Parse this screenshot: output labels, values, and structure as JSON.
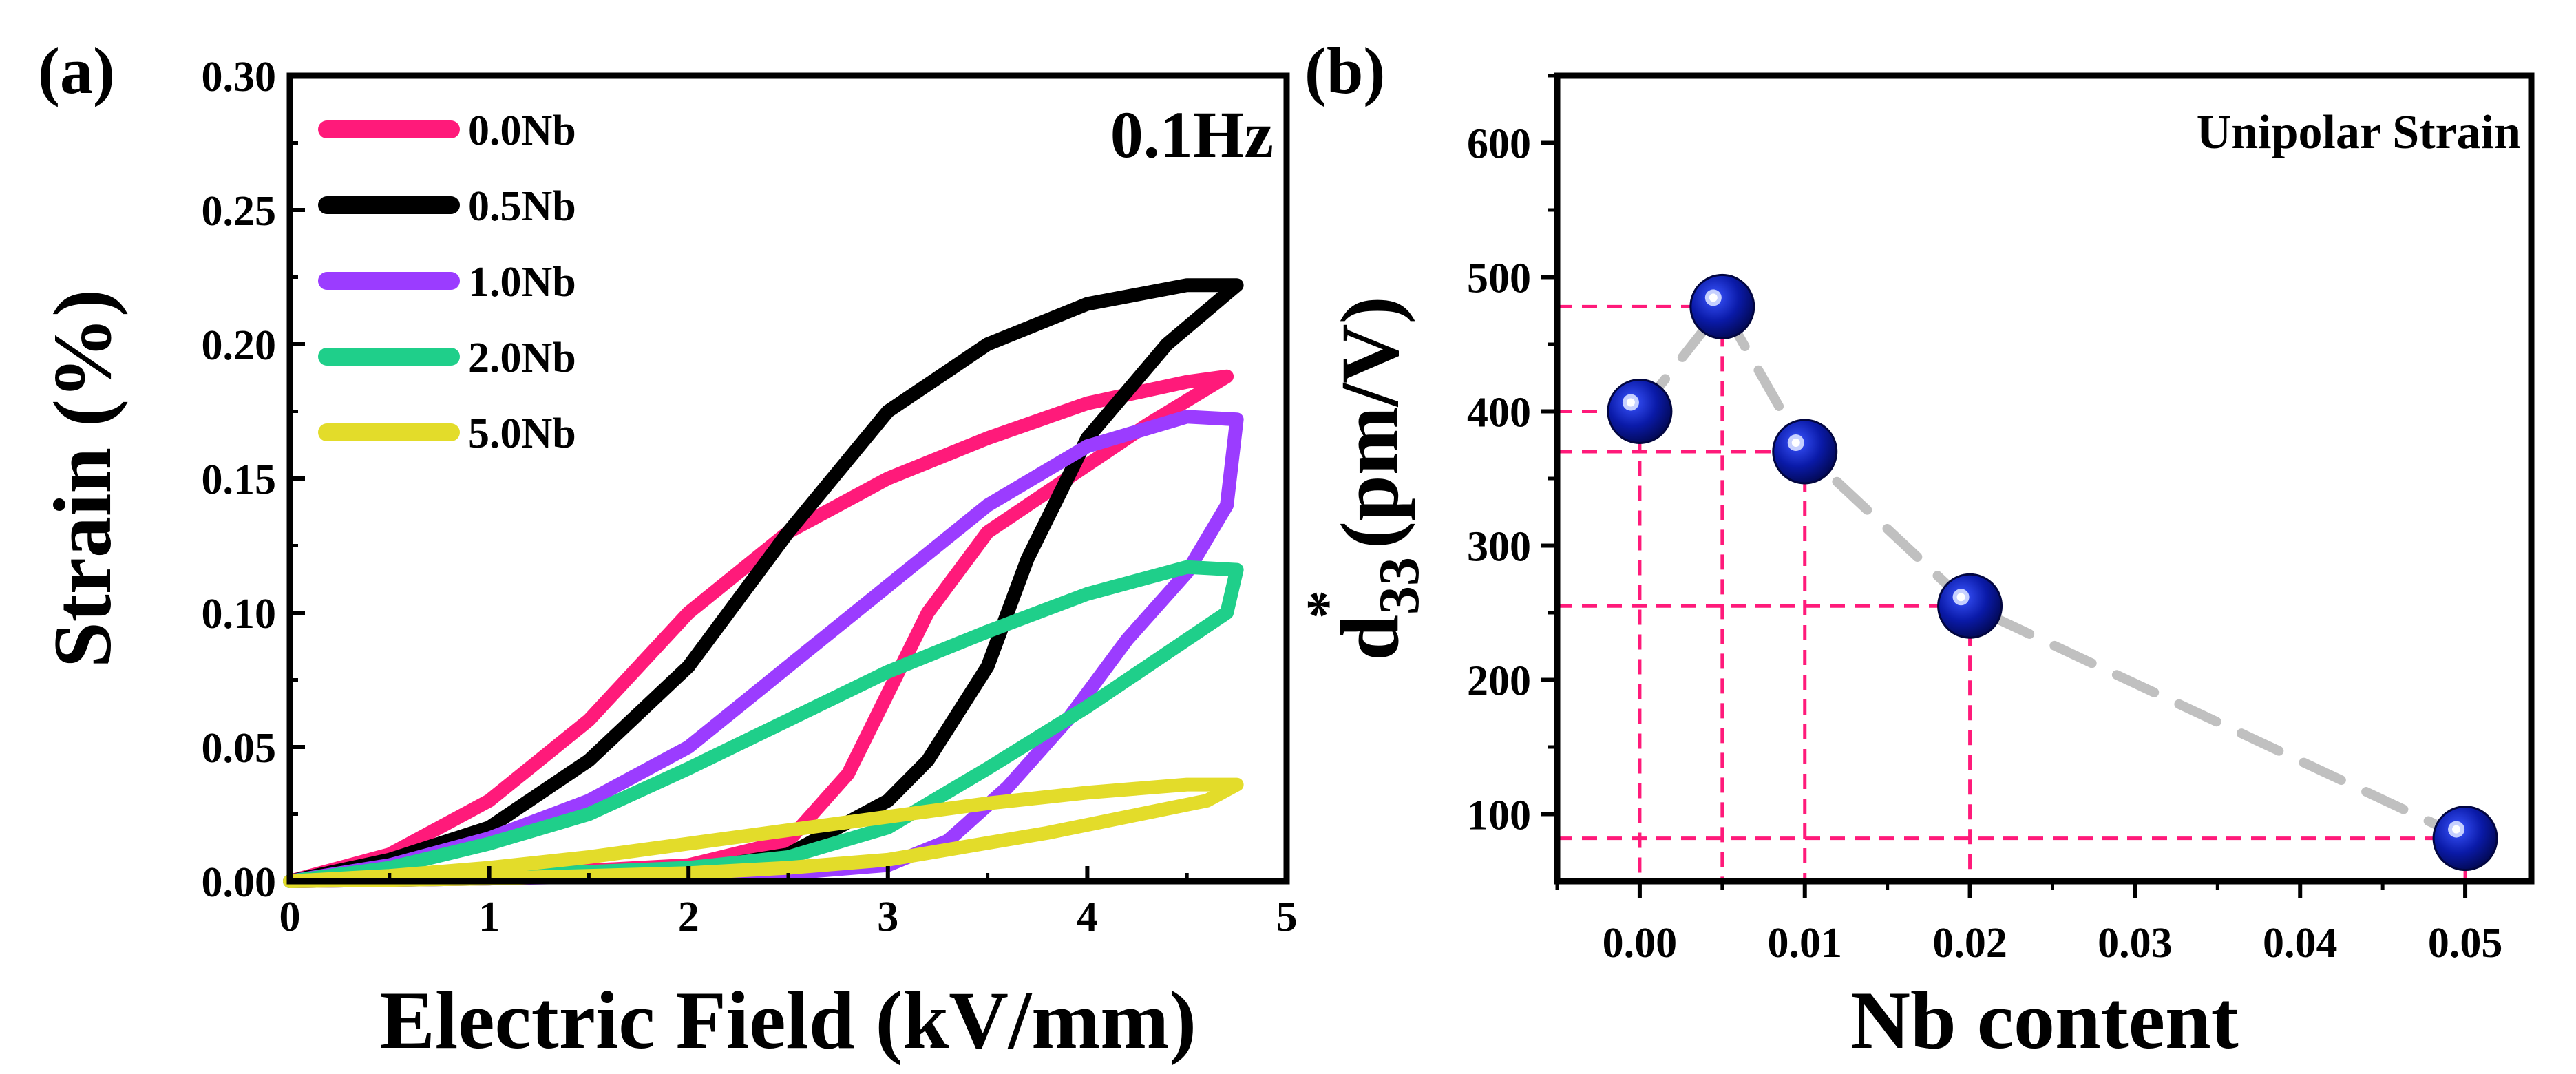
{
  "chart_data": [
    {
      "panel": "(a)",
      "type": "line",
      "annotation": "0.1Hz",
      "xlabel": "Electric Field (kV/mm)",
      "ylabel": "Strain (%)",
      "xlim": [
        0,
        5
      ],
      "ylim": [
        0,
        0.3
      ],
      "xticks": [
        "0",
        "1",
        "2",
        "3",
        "4",
        "5"
      ],
      "yticks": [
        "0.00",
        "0.05",
        "0.10",
        "0.15",
        "0.20",
        "0.25",
        "0.30"
      ],
      "legend_position": "top-left",
      "series": [
        {
          "name": "0.0Nb",
          "color": "#ff1a7a",
          "up": [
            [
              0,
              0
            ],
            [
              0.5,
              0.01
            ],
            [
              1,
              0.03
            ],
            [
              1.5,
              0.06
            ],
            [
              2,
              0.1
            ],
            [
              2.5,
              0.13
            ],
            [
              3,
              0.15
            ],
            [
              3.5,
              0.165
            ],
            [
              4,
              0.178
            ],
            [
              4.5,
              0.186
            ],
            [
              4.7,
              0.188
            ]
          ],
          "down": [
            [
              4.7,
              0.188
            ],
            [
              4.3,
              0.17
            ],
            [
              3.9,
              0.15
            ],
            [
              3.5,
              0.13
            ],
            [
              3.2,
              0.1
            ],
            [
              3,
              0.07
            ],
            [
              2.8,
              0.04
            ],
            [
              2.5,
              0.015
            ],
            [
              2,
              0.006
            ],
            [
              1,
              0.002
            ],
            [
              0,
              0
            ]
          ]
        },
        {
          "name": "0.5Nb",
          "color": "#000000",
          "up": [
            [
              0,
              0
            ],
            [
              0.5,
              0.008
            ],
            [
              1,
              0.02
            ],
            [
              1.5,
              0.045
            ],
            [
              2,
              0.08
            ],
            [
              2.5,
              0.13
            ],
            [
              3,
              0.175
            ],
            [
              3.5,
              0.2
            ],
            [
              4,
              0.215
            ],
            [
              4.5,
              0.222
            ],
            [
              4.75,
              0.222
            ]
          ],
          "down": [
            [
              4.75,
              0.222
            ],
            [
              4.4,
              0.2
            ],
            [
              4,
              0.165
            ],
            [
              3.7,
              0.12
            ],
            [
              3.5,
              0.08
            ],
            [
              3.2,
              0.045
            ],
            [
              3,
              0.03
            ],
            [
              2.5,
              0.01
            ],
            [
              2,
              0.004
            ],
            [
              1,
              0.001
            ],
            [
              0,
              0
            ]
          ]
        },
        {
          "name": "1.0Nb",
          "color": "#9b3cff",
          "up": [
            [
              0,
              0
            ],
            [
              0.5,
              0.006
            ],
            [
              1,
              0.016
            ],
            [
              1.5,
              0.03
            ],
            [
              2,
              0.05
            ],
            [
              2.5,
              0.08
            ],
            [
              3,
              0.11
            ],
            [
              3.5,
              0.14
            ],
            [
              4,
              0.162
            ],
            [
              4.5,
              0.173
            ],
            [
              4.75,
              0.172
            ]
          ],
          "down": [
            [
              4.75,
              0.172
            ],
            [
              4.7,
              0.14
            ],
            [
              4.5,
              0.115
            ],
            [
              4.2,
              0.09
            ],
            [
              3.9,
              0.06
            ],
            [
              3.6,
              0.035
            ],
            [
              3.3,
              0.015
            ],
            [
              3,
              0.006
            ],
            [
              2.5,
              0.003
            ],
            [
              1,
              0.001
            ],
            [
              0,
              0
            ]
          ]
        },
        {
          "name": "2.0Nb",
          "color": "#1fcf8a",
          "up": [
            [
              0,
              0
            ],
            [
              0.5,
              0.005
            ],
            [
              1,
              0.014
            ],
            [
              1.5,
              0.025
            ],
            [
              2,
              0.042
            ],
            [
              2.5,
              0.06
            ],
            [
              3,
              0.078
            ],
            [
              3.5,
              0.093
            ],
            [
              4,
              0.107
            ],
            [
              4.5,
              0.117
            ],
            [
              4.75,
              0.116
            ]
          ],
          "down": [
            [
              4.75,
              0.116
            ],
            [
              4.7,
              0.1
            ],
            [
              4.4,
              0.085
            ],
            [
              4,
              0.065
            ],
            [
              3.5,
              0.042
            ],
            [
              3,
              0.02
            ],
            [
              2.5,
              0.009
            ],
            [
              2,
              0.005
            ],
            [
              1,
              0.002
            ],
            [
              0,
              0
            ]
          ]
        },
        {
          "name": "5.0Nb",
          "color": "#e3dc2a",
          "up": [
            [
              0,
              0
            ],
            [
              0.5,
              0.002
            ],
            [
              1,
              0.005
            ],
            [
              1.5,
              0.009
            ],
            [
              2,
              0.014
            ],
            [
              2.5,
              0.019
            ],
            [
              3,
              0.024
            ],
            [
              3.5,
              0.029
            ],
            [
              4,
              0.033
            ],
            [
              4.5,
              0.036
            ],
            [
              4.75,
              0.036
            ]
          ],
          "down": [
            [
              4.75,
              0.036
            ],
            [
              4.6,
              0.03
            ],
            [
              4.2,
              0.024
            ],
            [
              3.8,
              0.018
            ],
            [
              3.4,
              0.013
            ],
            [
              3,
              0.008
            ],
            [
              2.5,
              0.005
            ],
            [
              2,
              0.003
            ],
            [
              1,
              0.001
            ],
            [
              0,
              0
            ]
          ]
        }
      ]
    },
    {
      "panel": "(b)",
      "type": "scatter",
      "annotation": "Unipolar Strain",
      "xlabel": "Nb content",
      "ylabel_main": "d",
      "ylabel_sub": "33",
      "ylabel_sup": "*",
      "ylabel_unit": "(pm/V)",
      "xlim": [
        -0.005,
        0.054
      ],
      "ylim": [
        50,
        650
      ],
      "xticks": [
        "0.00",
        "0.01",
        "0.02",
        "0.03",
        "0.04",
        "0.05"
      ],
      "yticks": [
        "100",
        "200",
        "300",
        "400",
        "500",
        "600"
      ],
      "x": [
        0.0,
        0.005,
        0.01,
        0.02,
        0.05
      ],
      "y": [
        400,
        478,
        370,
        255,
        82
      ],
      "trend_line": "dashed-gray",
      "guide_lines": "dashed-pink",
      "colors": {
        "marker": "#0a1aa8",
        "trend": "#c0c0c0",
        "guide": "#ff1a7a"
      }
    }
  ]
}
